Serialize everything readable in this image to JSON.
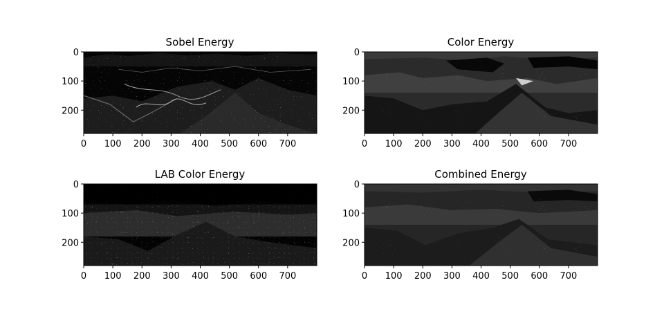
{
  "figure": {
    "background": "#ffffff",
    "layout": "2x2 grid of grayscale energy maps"
  },
  "chart_data": [
    {
      "type": "heatmap",
      "title": "Sobel Energy",
      "colormap": "gray",
      "image_shape": [
        280,
        800
      ],
      "x_ticks": [
        0,
        100,
        200,
        300,
        400,
        500,
        600,
        700
      ],
      "y_ticks": [
        0,
        100,
        200
      ],
      "xlim": [
        0,
        800
      ],
      "ylim": [
        280,
        0
      ],
      "grid": false,
      "dominant_tone": "dark, thin bright edges along ridges and river"
    },
    {
      "type": "heatmap",
      "title": "Color Energy",
      "colormap": "gray",
      "image_shape": [
        280,
        800
      ],
      "x_ticks": [
        0,
        100,
        200,
        300,
        400,
        500,
        600,
        700
      ],
      "y_ticks": [
        0,
        100,
        200
      ],
      "xlim": [
        0,
        800
      ],
      "ylim": [
        280,
        0
      ],
      "grid": false,
      "dominant_tone": "flat gray regions with speckled slopes"
    },
    {
      "type": "heatmap",
      "title": "LAB Color Energy",
      "colormap": "gray",
      "image_shape": [
        280,
        800
      ],
      "x_ticks": [
        0,
        100,
        200,
        300,
        400,
        500,
        600,
        700
      ],
      "y_ticks": [
        0,
        100,
        200
      ],
      "xlim": [
        0,
        800
      ],
      "ylim": [
        280,
        0
      ],
      "grid": false,
      "dominant_tone": "dark sky, bright speckles in valley and foreground"
    },
    {
      "type": "heatmap",
      "title": "Combined Energy",
      "colormap": "gray",
      "image_shape": [
        280,
        800
      ],
      "x_ticks": [
        0,
        100,
        200,
        300,
        400,
        500,
        600,
        700
      ],
      "y_ticks": [
        0,
        100,
        200
      ],
      "xlim": [
        0,
        800
      ],
      "ylim": [
        280,
        0
      ],
      "grid": false,
      "dominant_tone": "mid gray regions with speckled slopes"
    }
  ]
}
